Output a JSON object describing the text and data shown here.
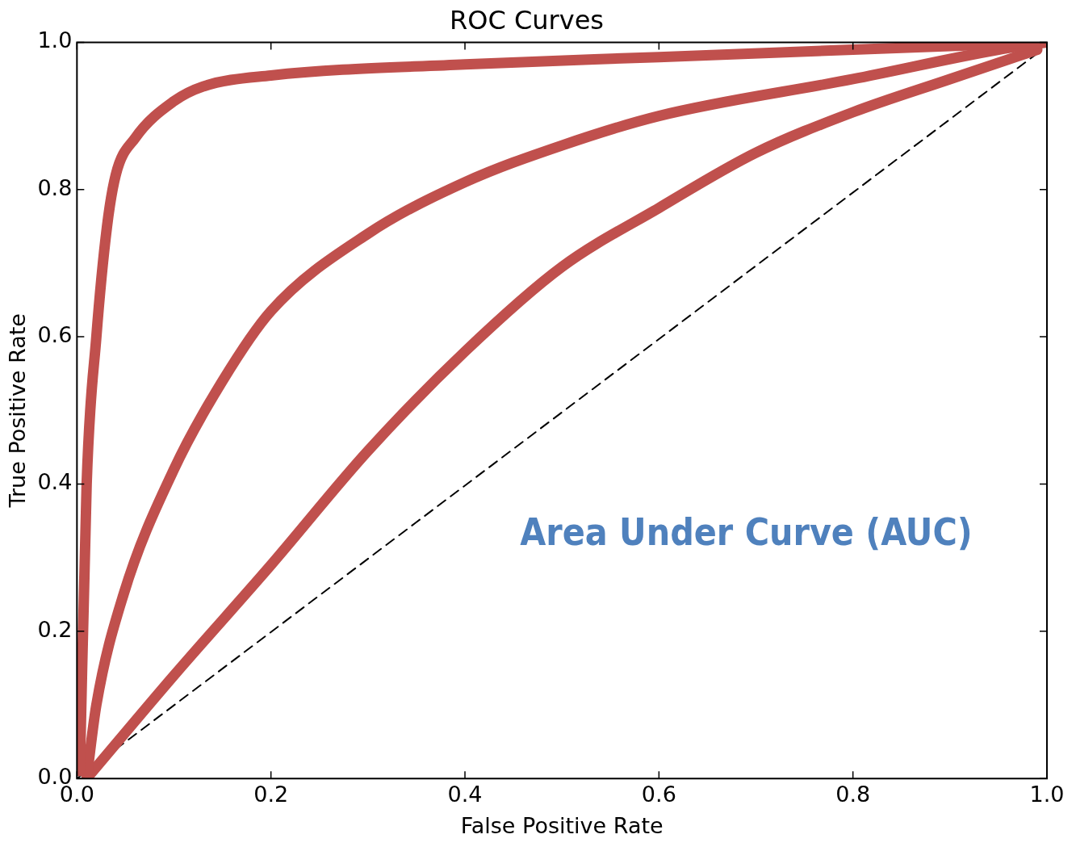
{
  "chart_data": {
    "type": "line",
    "title": "ROC Curves",
    "xlabel": "False Positive Rate",
    "ylabel": "True Positive Rate",
    "xlim": [
      0,
      1
    ],
    "ylim": [
      0,
      1
    ],
    "xticks": [
      {
        "value": 0,
        "label": "0.0"
      },
      {
        "value": 0.2,
        "label": "0.2"
      },
      {
        "value": 0.4,
        "label": "0.4"
      },
      {
        "value": 0.6,
        "label": "0.6"
      },
      {
        "value": 0.8,
        "label": "0.8"
      },
      {
        "value": 1,
        "label": "1.0"
      }
    ],
    "yticks": [
      {
        "value": 0,
        "label": "0.0"
      },
      {
        "value": 0.2,
        "label": "0.2"
      },
      {
        "value": 0.4,
        "label": "0.4"
      },
      {
        "value": 0.6,
        "label": "0.6"
      },
      {
        "value": 0.8,
        "label": "0.8"
      },
      {
        "value": 1,
        "label": "1.0"
      }
    ],
    "grid": false,
    "legend": false,
    "marker": "none",
    "annotations": [
      "Area Under Curve (AUC)"
    ],
    "series": [
      {
        "color": "#c0504d",
        "line_style": "solid",
        "x": [
          0.003,
          0.01,
          0.02,
          0.031,
          0.04,
          0.06,
          0.1,
          0.13,
          0.2,
          0.4,
          0.6,
          0.8,
          1.0
        ],
        "values": [
          0.01,
          0.4,
          0.6,
          0.75,
          0.82,
          0.87,
          0.92,
          0.94,
          0.955,
          0.97,
          0.98,
          0.99,
          1.0
        ]
      },
      {
        "color": "#c0504d",
        "line_style": "solid",
        "x": [
          0.01,
          0.02,
          0.048,
          0.1,
          0.15,
          0.2,
          0.3,
          0.4,
          0.5,
          0.6,
          0.8,
          0.95,
          1.0
        ],
        "values": [
          0.0,
          0.1,
          0.25,
          0.42,
          0.54,
          0.635,
          0.74,
          0.81,
          0.86,
          0.9,
          0.95,
          0.99,
          1.0
        ]
      },
      {
        "color": "#c0504d",
        "line_style": "solid",
        "x": [
          0.01,
          0.1,
          0.2,
          0.3,
          0.4,
          0.5,
          0.6,
          0.7,
          0.8,
          0.9,
          0.99
        ],
        "values": [
          0.0,
          0.14,
          0.29,
          0.445,
          0.58,
          0.695,
          0.775,
          0.85,
          0.905,
          0.95,
          0.99
        ]
      },
      {
        "color": "#000000",
        "line_style": "dashed",
        "x": [
          0.0,
          0.99
        ],
        "values": [
          0.0,
          0.985
        ]
      }
    ]
  }
}
